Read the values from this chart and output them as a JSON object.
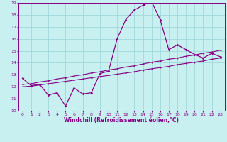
{
  "xlabel": "Windchill (Refroidissement éolien,°C)",
  "xlim": [
    -0.5,
    23.5
  ],
  "ylim": [
    10,
    19
  ],
  "xticks": [
    0,
    1,
    2,
    3,
    4,
    5,
    6,
    7,
    8,
    9,
    10,
    11,
    12,
    13,
    14,
    15,
    16,
    17,
    18,
    19,
    20,
    21,
    22,
    23
  ],
  "yticks": [
    10,
    11,
    12,
    13,
    14,
    15,
    16,
    17,
    18,
    19
  ],
  "bg_color": "#c8f0f0",
  "grid_color": "#9ad4d8",
  "line_color": "#880088",
  "line1_x": [
    0,
    1,
    2,
    3,
    4,
    5,
    6,
    7,
    8,
    9,
    10,
    11,
    12,
    13,
    14,
    15,
    16,
    17,
    18,
    19,
    20,
    21,
    22,
    23
  ],
  "line1_y": [
    12.7,
    12.1,
    12.2,
    11.3,
    11.5,
    10.4,
    11.9,
    11.4,
    11.5,
    13.1,
    13.3,
    16.0,
    17.6,
    18.4,
    18.8,
    19.1,
    17.6,
    15.1,
    15.5,
    15.1,
    14.7,
    14.4,
    14.8,
    14.5
  ],
  "line2_x": [
    0,
    1,
    2,
    3,
    4,
    5,
    6,
    7,
    8,
    9,
    10,
    11,
    12,
    13,
    14,
    15,
    16,
    17,
    18,
    19,
    20,
    21,
    22,
    23
  ],
  "line2_y": [
    12.2,
    12.25,
    12.4,
    12.5,
    12.65,
    12.75,
    12.9,
    13.0,
    13.15,
    13.25,
    13.4,
    13.5,
    13.65,
    13.75,
    13.9,
    14.05,
    14.15,
    14.3,
    14.4,
    14.55,
    14.65,
    14.8,
    14.9,
    15.05
  ],
  "line3_x": [
    0,
    1,
    2,
    3,
    4,
    5,
    6,
    7,
    8,
    9,
    10,
    11,
    12,
    13,
    14,
    15,
    16,
    17,
    18,
    19,
    20,
    21,
    22,
    23
  ],
  "line3_y": [
    12.0,
    12.05,
    12.15,
    12.25,
    12.35,
    12.45,
    12.55,
    12.65,
    12.75,
    12.85,
    12.95,
    13.05,
    13.15,
    13.25,
    13.4,
    13.5,
    13.6,
    13.7,
    13.85,
    13.95,
    14.05,
    14.15,
    14.3,
    14.4
  ]
}
